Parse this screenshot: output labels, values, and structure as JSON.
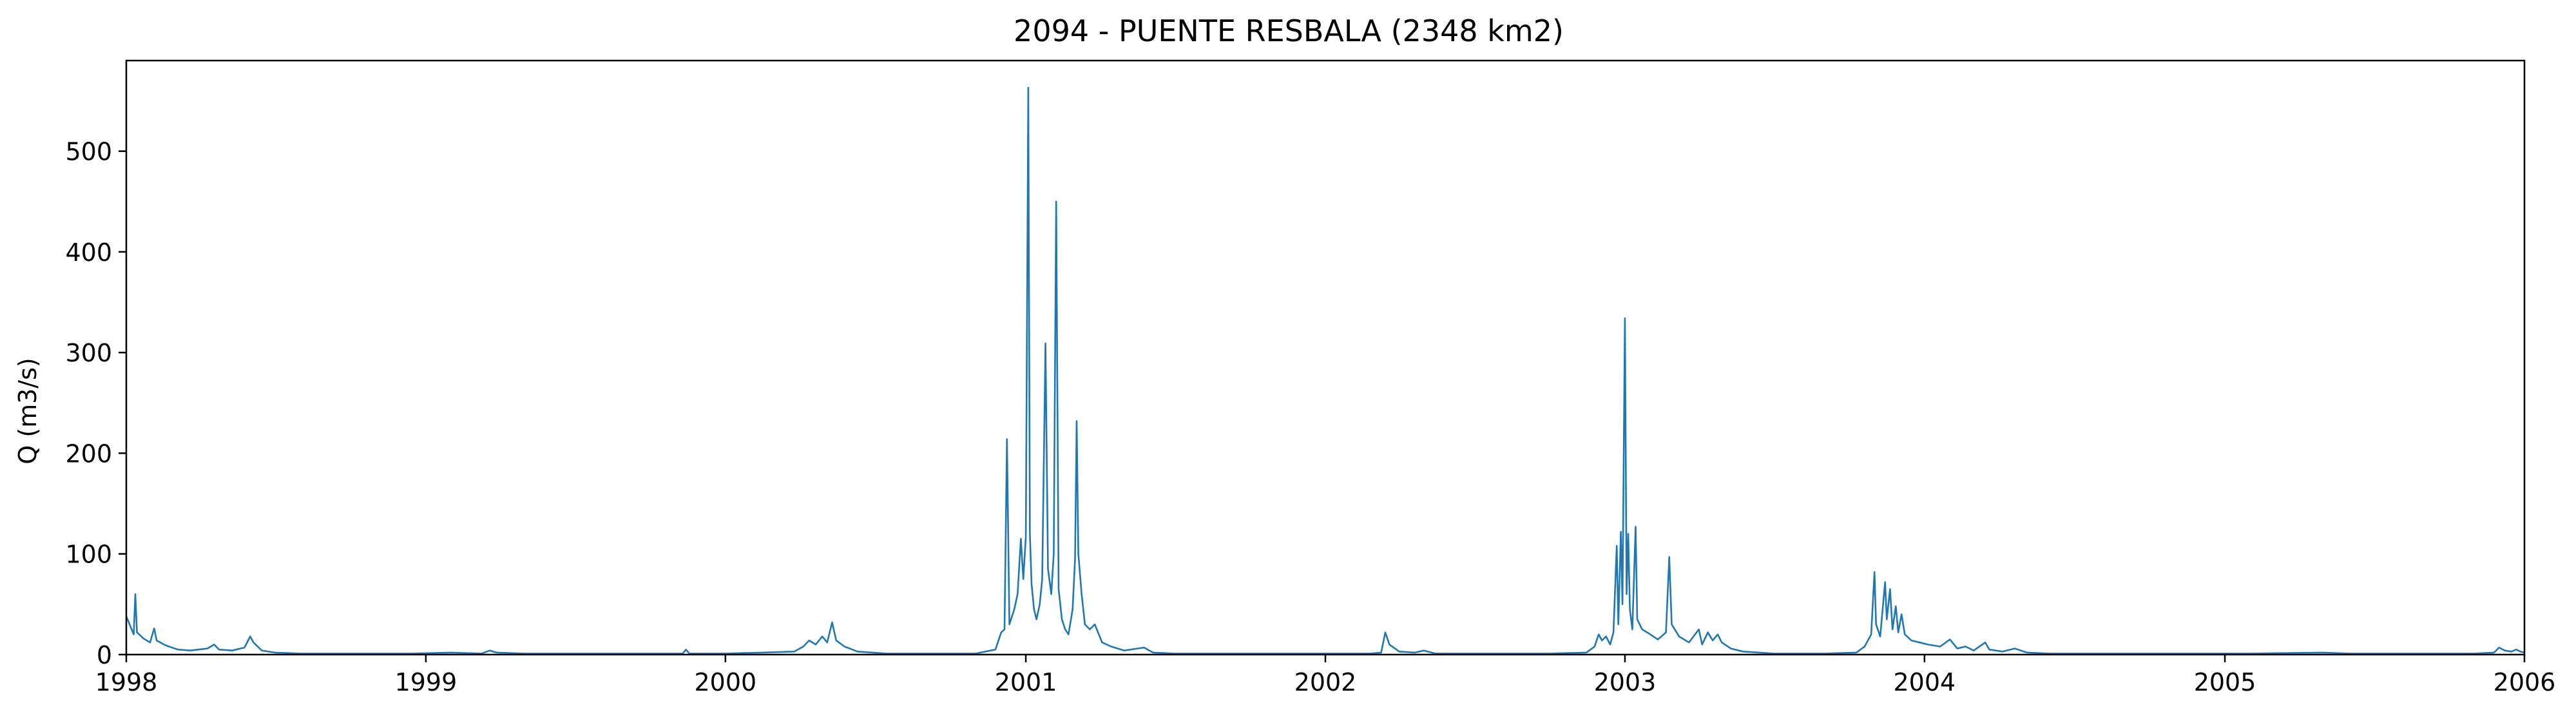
{
  "chart_data": {
    "type": "line",
    "title": "2094 - PUENTE RESBALA (2348 km2)",
    "xlabel": "",
    "ylabel": "Q (m3/s)",
    "xlim": [
      "1998-01-01",
      "2006-01-01"
    ],
    "ylim": [
      0,
      590
    ],
    "grid": false,
    "line_color": "#1f77b4",
    "x_ticks": [
      {
        "date": "1998-01-01",
        "label": "1998"
      },
      {
        "date": "1999-01-01",
        "label": "1999"
      },
      {
        "date": "2000-01-01",
        "label": "2000"
      },
      {
        "date": "2001-01-01",
        "label": "2001"
      },
      {
        "date": "2002-01-01",
        "label": "2002"
      },
      {
        "date": "2003-01-01",
        "label": "2003"
      },
      {
        "date": "2004-01-01",
        "label": "2004"
      },
      {
        "date": "2005-01-01",
        "label": "2005"
      },
      {
        "date": "2006-01-01",
        "label": "2006"
      }
    ],
    "y_ticks": [
      0,
      100,
      200,
      300,
      400,
      500
    ],
    "series": [
      {
        "points": [
          [
            "1998-01-01",
            38
          ],
          [
            "1998-01-06",
            28
          ],
          [
            "1998-01-10",
            20
          ],
          [
            "1998-01-12",
            60
          ],
          [
            "1998-01-14",
            22
          ],
          [
            "1998-01-22",
            16
          ],
          [
            "1998-01-30",
            12
          ],
          [
            "1998-02-04",
            26
          ],
          [
            "1998-02-07",
            14
          ],
          [
            "1998-02-16",
            10
          ],
          [
            "1998-02-22",
            8
          ],
          [
            "1998-03-05",
            5
          ],
          [
            "1998-03-20",
            4
          ],
          [
            "1998-04-10",
            6
          ],
          [
            "1998-04-18",
            10
          ],
          [
            "1998-04-24",
            5
          ],
          [
            "1998-05-10",
            4
          ],
          [
            "1998-05-25",
            7
          ],
          [
            "1998-06-01",
            18
          ],
          [
            "1998-06-05",
            12
          ],
          [
            "1998-06-15",
            4
          ],
          [
            "1998-07-01",
            2
          ],
          [
            "1998-08-01",
            1
          ],
          [
            "1998-10-01",
            1
          ],
          [
            "1998-12-15",
            1
          ],
          [
            "1999-02-01",
            2
          ],
          [
            "1999-03-10",
            1
          ],
          [
            "1999-03-20",
            4
          ],
          [
            "1999-03-28",
            2
          ],
          [
            "1999-05-01",
            1
          ],
          [
            "1999-07-01",
            1
          ],
          [
            "1999-10-01",
            1
          ],
          [
            "1999-11-10",
            1
          ],
          [
            "1999-11-14",
            5
          ],
          [
            "1999-11-18",
            1
          ],
          [
            "2000-01-01",
            1
          ],
          [
            "2000-02-15",
            2
          ],
          [
            "2000-03-25",
            3
          ],
          [
            "2000-04-05",
            8
          ],
          [
            "2000-04-12",
            14
          ],
          [
            "2000-04-20",
            10
          ],
          [
            "2000-04-28",
            18
          ],
          [
            "2000-05-04",
            12
          ],
          [
            "2000-05-10",
            32
          ],
          [
            "2000-05-15",
            14
          ],
          [
            "2000-05-25",
            8
          ],
          [
            "2000-06-10",
            3
          ],
          [
            "2000-07-15",
            1
          ],
          [
            "2000-09-01",
            1
          ],
          [
            "2000-11-01",
            1
          ],
          [
            "2000-11-25",
            5
          ],
          [
            "2000-12-02",
            22
          ],
          [
            "2000-12-06",
            25
          ],
          [
            "2000-12-09",
            214
          ],
          [
            "2000-12-12",
            30
          ],
          [
            "2000-12-18",
            45
          ],
          [
            "2000-12-22",
            60
          ],
          [
            "2000-12-26",
            115
          ],
          [
            "2000-12-29",
            75
          ],
          [
            "2001-01-01",
            117
          ],
          [
            "2001-01-04",
            563
          ],
          [
            "2001-01-06",
            120
          ],
          [
            "2001-01-08",
            70
          ],
          [
            "2001-01-11",
            45
          ],
          [
            "2001-01-14",
            35
          ],
          [
            "2001-01-18",
            50
          ],
          [
            "2001-01-21",
            75
          ],
          [
            "2001-01-25",
            309
          ],
          [
            "2001-01-28",
            85
          ],
          [
            "2001-02-01",
            60
          ],
          [
            "2001-02-04",
            100
          ],
          [
            "2001-02-07",
            450
          ],
          [
            "2001-02-10",
            65
          ],
          [
            "2001-02-14",
            35
          ],
          [
            "2001-02-18",
            25
          ],
          [
            "2001-02-22",
            20
          ],
          [
            "2001-02-27",
            45
          ],
          [
            "2001-03-02",
            95
          ],
          [
            "2001-03-04",
            232
          ],
          [
            "2001-03-06",
            100
          ],
          [
            "2001-03-10",
            60
          ],
          [
            "2001-03-14",
            30
          ],
          [
            "2001-03-20",
            25
          ],
          [
            "2001-03-26",
            30
          ],
          [
            "2001-04-04",
            12
          ],
          [
            "2001-04-15",
            8
          ],
          [
            "2001-05-01",
            4
          ],
          [
            "2001-05-25",
            7
          ],
          [
            "2001-06-05",
            2
          ],
          [
            "2001-07-01",
            1
          ],
          [
            "2001-09-01",
            1
          ],
          [
            "2001-12-01",
            1
          ],
          [
            "2002-02-25",
            1
          ],
          [
            "2002-03-10",
            2
          ],
          [
            "2002-03-15",
            22
          ],
          [
            "2002-03-20",
            10
          ],
          [
            "2002-04-01",
            3
          ],
          [
            "2002-04-20",
            2
          ],
          [
            "2002-05-01",
            4
          ],
          [
            "2002-05-15",
            1
          ],
          [
            "2002-07-01",
            1
          ],
          [
            "2002-10-01",
            1
          ],
          [
            "2002-11-15",
            2
          ],
          [
            "2002-11-25",
            8
          ],
          [
            "2002-11-30",
            20
          ],
          [
            "2002-12-04",
            14
          ],
          [
            "2002-12-09",
            18
          ],
          [
            "2002-12-14",
            10
          ],
          [
            "2002-12-18",
            22
          ],
          [
            "2002-12-22",
            108
          ],
          [
            "2002-12-24",
            30
          ],
          [
            "2002-12-27",
            122
          ],
          [
            "2002-12-29",
            50
          ],
          [
            "2003-01-01",
            334
          ],
          [
            "2003-01-03",
            60
          ],
          [
            "2003-01-05",
            120
          ],
          [
            "2003-01-07",
            45
          ],
          [
            "2003-01-10",
            25
          ],
          [
            "2003-01-14",
            127
          ],
          [
            "2003-01-16",
            35
          ],
          [
            "2003-01-22",
            25
          ],
          [
            "2003-02-01",
            20
          ],
          [
            "2003-02-10",
            15
          ],
          [
            "2003-02-20",
            22
          ],
          [
            "2003-02-24",
            97
          ],
          [
            "2003-02-27",
            30
          ],
          [
            "2003-03-08",
            18
          ],
          [
            "2003-03-20",
            12
          ],
          [
            "2003-04-01",
            25
          ],
          [
            "2003-04-05",
            10
          ],
          [
            "2003-04-12",
            22
          ],
          [
            "2003-04-18",
            14
          ],
          [
            "2003-04-24",
            20
          ],
          [
            "2003-04-29",
            12
          ],
          [
            "2003-05-10",
            6
          ],
          [
            "2003-05-25",
            3
          ],
          [
            "2003-07-01",
            1
          ],
          [
            "2003-09-01",
            1
          ],
          [
            "2003-10-10",
            2
          ],
          [
            "2003-10-20",
            8
          ],
          [
            "2003-10-28",
            20
          ],
          [
            "2003-11-01",
            82
          ],
          [
            "2003-11-03",
            30
          ],
          [
            "2003-11-08",
            18
          ],
          [
            "2003-11-14",
            72
          ],
          [
            "2003-11-16",
            35
          ],
          [
            "2003-11-20",
            65
          ],
          [
            "2003-11-23",
            25
          ],
          [
            "2003-11-27",
            48
          ],
          [
            "2003-11-30",
            22
          ],
          [
            "2003-12-04",
            40
          ],
          [
            "2003-12-08",
            20
          ],
          [
            "2003-12-16",
            14
          ],
          [
            "2003-12-26",
            12
          ],
          [
            "2004-01-05",
            10
          ],
          [
            "2004-01-20",
            8
          ],
          [
            "2004-02-01",
            15
          ],
          [
            "2004-02-10",
            6
          ],
          [
            "2004-02-20",
            8
          ],
          [
            "2004-03-01",
            4
          ],
          [
            "2004-03-15",
            12
          ],
          [
            "2004-03-20",
            5
          ],
          [
            "2004-04-05",
            3
          ],
          [
            "2004-04-20",
            6
          ],
          [
            "2004-05-05",
            2
          ],
          [
            "2004-06-01",
            1
          ],
          [
            "2004-08-01",
            1
          ],
          [
            "2004-11-01",
            1
          ],
          [
            "2005-02-01",
            1
          ],
          [
            "2005-05-01",
            2
          ],
          [
            "2005-06-01",
            1
          ],
          [
            "2005-09-01",
            1
          ],
          [
            "2005-11-01",
            1
          ],
          [
            "2005-11-25",
            2
          ],
          [
            "2005-12-01",
            7
          ],
          [
            "2005-12-08",
            4
          ],
          [
            "2005-12-16",
            3
          ],
          [
            "2005-12-22",
            5
          ],
          [
            "2005-12-27",
            3
          ],
          [
            "2006-01-01",
            2
          ]
        ]
      }
    ]
  }
}
